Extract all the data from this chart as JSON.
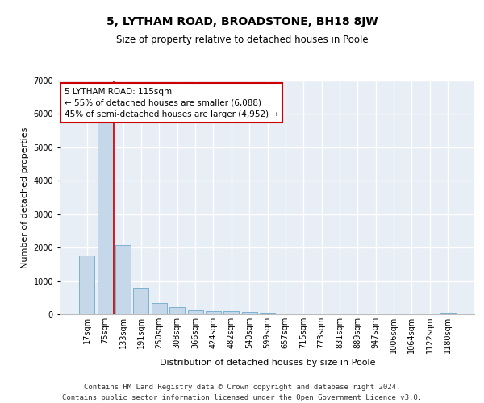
{
  "title": "5, LYTHAM ROAD, BROADSTONE, BH18 8JW",
  "subtitle": "Size of property relative to detached houses in Poole",
  "xlabel": "Distribution of detached houses by size in Poole",
  "ylabel": "Number of detached properties",
  "categories": [
    "17sqm",
    "75sqm",
    "133sqm",
    "191sqm",
    "250sqm",
    "308sqm",
    "366sqm",
    "424sqm",
    "482sqm",
    "540sqm",
    "599sqm",
    "657sqm",
    "715sqm",
    "773sqm",
    "831sqm",
    "889sqm",
    "947sqm",
    "1006sqm",
    "1064sqm",
    "1122sqm",
    "1180sqm"
  ],
  "values": [
    1770,
    5750,
    2070,
    790,
    350,
    210,
    115,
    100,
    100,
    75,
    55,
    0,
    0,
    0,
    0,
    0,
    0,
    0,
    0,
    0,
    55
  ],
  "bar_color": "#c5d8ea",
  "bar_edge_color": "#6fa8cc",
  "vline_x": 1.5,
  "vline_color": "#cc0000",
  "annotation_text": "5 LYTHAM ROAD: 115sqm\n← 55% of detached houses are smaller (6,088)\n45% of semi-detached houses are larger (4,952) →",
  "annotation_box_color": "white",
  "annotation_box_edge_color": "#cc0000",
  "ylim": [
    0,
    7000
  ],
  "yticks": [
    0,
    1000,
    2000,
    3000,
    4000,
    5000,
    6000,
    7000
  ],
  "background_color": "#e8eef6",
  "grid_color": "white",
  "footer_line1": "Contains HM Land Registry data © Crown copyright and database right 2024.",
  "footer_line2": "Contains public sector information licensed under the Open Government Licence v3.0.",
  "title_fontsize": 10,
  "subtitle_fontsize": 8.5,
  "axis_label_fontsize": 8,
  "tick_fontsize": 7,
  "footer_fontsize": 6.5
}
